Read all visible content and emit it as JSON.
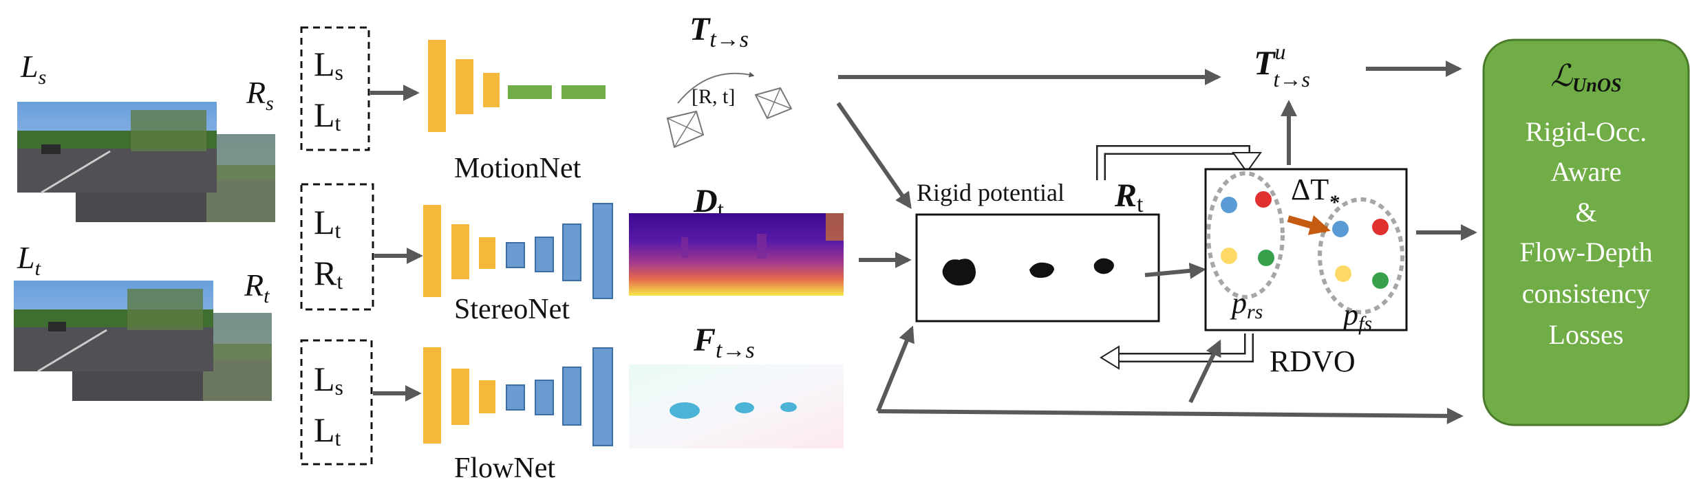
{
  "left_images": {
    "Ls": "L",
    "Ls_sub": "s",
    "Rs": "R",
    "Rs_sub": "s",
    "Lt": "L",
    "Lt_sub": "t",
    "Rt": "R",
    "Rt_sub": "t"
  },
  "input_boxes": {
    "motion": [
      "L",
      "s",
      "L",
      "t"
    ],
    "stereo": [
      "L",
      "t",
      "R",
      "t"
    ],
    "flow": [
      "L",
      "s",
      "L",
      "t"
    ]
  },
  "networks": {
    "motion": "MotionNet",
    "stereo": "StereoNet",
    "flow": "FlowNet"
  },
  "outputs": {
    "pose_symbol": "T",
    "pose_sub": "t→s",
    "pose_inner": "[R, t]",
    "depth_symbol": "D",
    "depth_sub": "t",
    "flow_symbol": "F",
    "flow_sub": "t→s"
  },
  "rigid": {
    "label": "Rigid potential",
    "symbol": "R",
    "sub": "t"
  },
  "rdvo": {
    "label": "RDVO",
    "delta": "ΔT",
    "delta_sub": "*",
    "p_rs": "p",
    "p_rs_sub": "rs",
    "p_fs": "p",
    "p_fs_sub": "fs"
  },
  "refined_pose": {
    "symbol": "T",
    "sup": "u",
    "sub": "t→s"
  },
  "loss": {
    "title": "ℒ",
    "title_sub": "UnOS",
    "lines": [
      "Rigid-Occ.",
      "Aware",
      "&",
      "Flow-Depth",
      "consistency",
      "Losses"
    ]
  },
  "colors": {
    "encoder": "#f4b93a",
    "decoder": "#6a9bd1",
    "pose_head": "#70ad47",
    "loss_box": "#70ad47",
    "arrow": "#595959",
    "point_blue": "#5b9bd5",
    "point_red": "#e03131",
    "point_yellow": "#ffd966",
    "point_green": "#37a04a",
    "delta_arrow": "#c55a11"
  }
}
